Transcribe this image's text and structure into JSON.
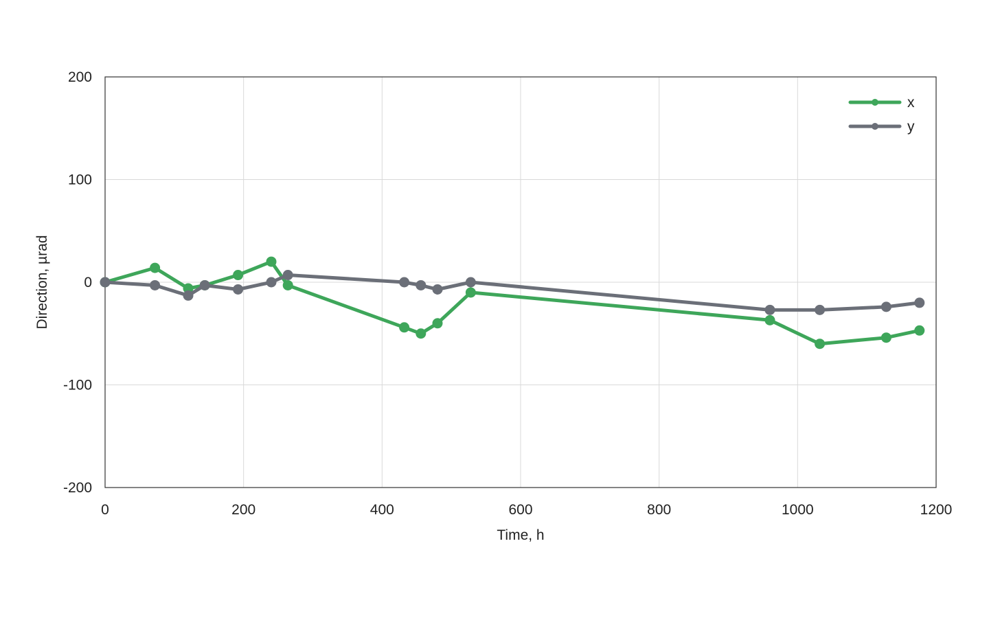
{
  "chart_data": {
    "type": "line",
    "title": "",
    "xlabel": "Time, h",
    "ylabel": "Direction, µrad",
    "xlim": [
      0,
      1200
    ],
    "ylim": [
      -200,
      200
    ],
    "x_ticks": [
      0,
      200,
      400,
      600,
      800,
      1000,
      1200
    ],
    "y_ticks": [
      -200,
      -100,
      0,
      100,
      200
    ],
    "x_tick_labels": [
      "0",
      "200",
      "400",
      "600",
      "800",
      "1000",
      "1200"
    ],
    "y_tick_labels": [
      "-200",
      "-100",
      "0",
      "100",
      "200"
    ],
    "grid": true,
    "legend_position": "top-right",
    "series": [
      {
        "name": "x",
        "color": "#3ea65a",
        "x": [
          0,
          72,
          120,
          144,
          192,
          240,
          264,
          432,
          456,
          480,
          528,
          960,
          1032,
          1128,
          1176
        ],
        "y": [
          0,
          14,
          -6,
          -3,
          7,
          20,
          -3,
          -44,
          -50,
          -40,
          -10,
          -37,
          -60,
          -54,
          -47
        ]
      },
      {
        "name": "y",
        "color": "#6b6f78",
        "x": [
          0,
          72,
          120,
          144,
          192,
          240,
          264,
          432,
          456,
          480,
          528,
          960,
          1032,
          1128,
          1176
        ],
        "y": [
          0,
          -3,
          -13,
          -3,
          -7,
          0,
          7,
          0,
          -3,
          -7,
          0,
          -27,
          -27,
          -24,
          -20
        ]
      }
    ]
  }
}
